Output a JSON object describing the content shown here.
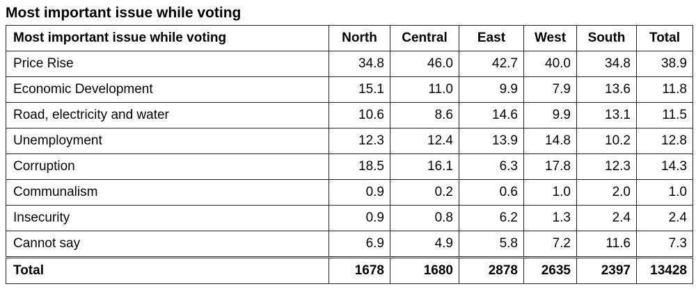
{
  "title": "Most important issue while voting",
  "table": {
    "headers": [
      "Most important issue while voting",
      "North",
      "Central",
      "East",
      "West",
      "South",
      "Total"
    ],
    "rows": [
      [
        "Price Rise",
        "34.8",
        "46.0",
        "42.7",
        "40.0",
        "34.8",
        "38.9"
      ],
      [
        "Economic Development",
        "15.1",
        "11.0",
        "9.9",
        "7.9",
        "13.6",
        "11.8"
      ],
      [
        "Road, electricity and water",
        "10.6",
        "8.6",
        "14.6",
        "9.9",
        "13.1",
        "11.5"
      ],
      [
        "Unemployment",
        "12.3",
        "12.4",
        "13.9",
        "14.8",
        "10.2",
        "12.8"
      ],
      [
        "Corruption",
        "18.5",
        "16.1",
        "6.3",
        "17.8",
        "12.3",
        "14.3"
      ],
      [
        "Communalism",
        "0.9",
        "0.2",
        "0.6",
        "1.0",
        "2.0",
        "1.0"
      ],
      [
        "Insecurity",
        "0.9",
        "0.8",
        "6.2",
        "1.3",
        "2.4",
        "2.4"
      ],
      [
        "Cannot say",
        "6.9",
        "4.9",
        "5.8",
        "7.2",
        "11.6",
        "7.3"
      ]
    ],
    "total_row": [
      "Total",
      "1678",
      "1680",
      "2878",
      "2635",
      "2397",
      "13428"
    ]
  }
}
